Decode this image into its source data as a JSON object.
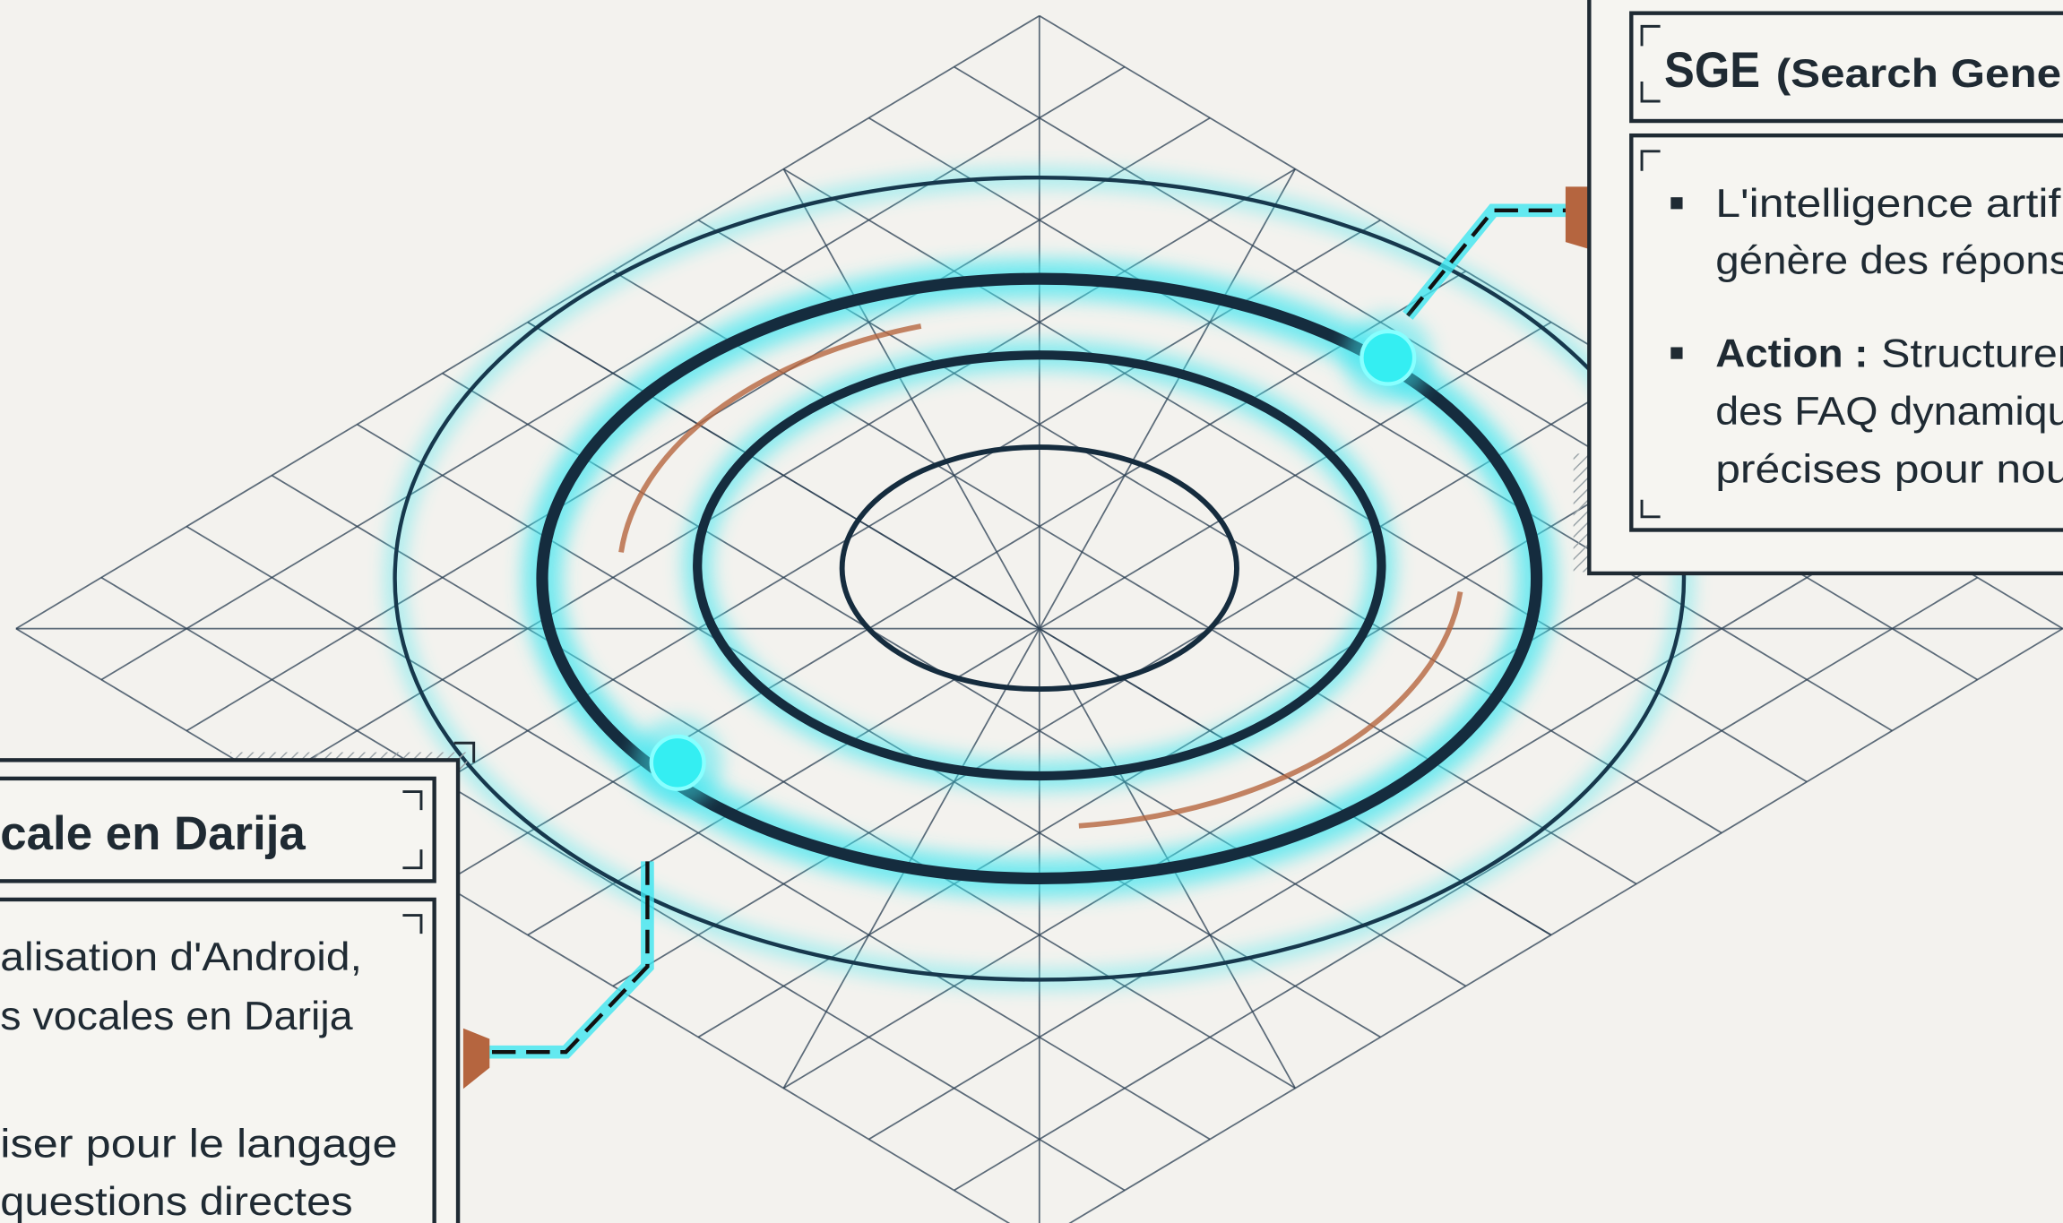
{
  "right_panel": {
    "title_bold": "SGE",
    "title_rest": "(Search Gener",
    "bullets": [
      {
        "lines": [
          "L'intelligence artifi",
          "génère des répons"
        ]
      },
      {
        "bold": "Action :",
        "lines": [
          "Structurer",
          "des FAQ dynamiqu",
          "précises pour nou"
        ]
      }
    ]
  },
  "left_panel": {
    "title": "cale en Darija",
    "bullets": [
      {
        "lines": [
          "alisation d'Android,",
          "s vocales en Darija"
        ]
      },
      {
        "lines": [
          "iser pour le langage",
          "questions directes"
        ]
      }
    ]
  }
}
